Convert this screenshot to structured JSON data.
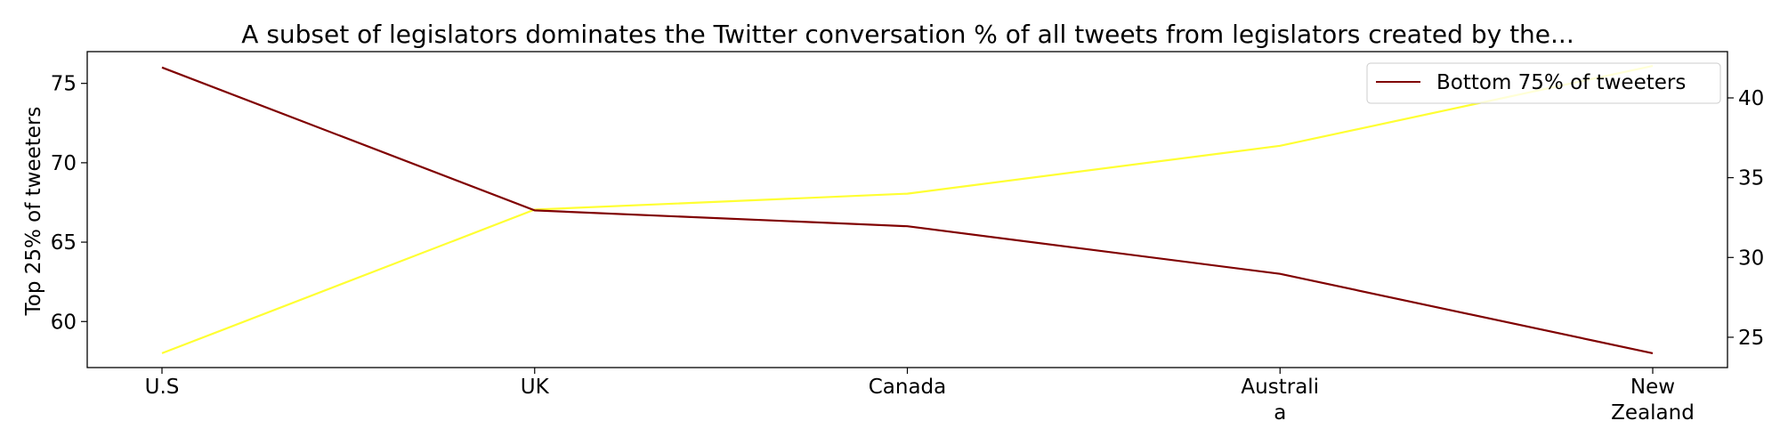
{
  "chart_data": {
    "type": "line",
    "title": "A subset of legislators dominates the Twitter conversation % of all tweets from legislators created by the...",
    "categories": [
      [
        "U.S"
      ],
      [
        "UK"
      ],
      [
        "Canada"
      ],
      [
        "Australi",
        "a"
      ],
      [
        "New",
        "Zealand"
      ]
    ],
    "ylabel_left": "Top 25% of tweeters",
    "ylabel_right": "",
    "ylim_left": [
      57.1,
      77.0
    ],
    "ylim_right": [
      23.1,
      42.9
    ],
    "yticks_left": [
      60,
      65,
      70,
      75
    ],
    "yticks_right": [
      25,
      30,
      35,
      40
    ],
    "series": [
      {
        "name": "Top 25% of tweeters",
        "axis": "left",
        "color": "#800000",
        "values": [
          76,
          67,
          66,
          63,
          58
        ]
      },
      {
        "name": "Bottom 75% of tweeters",
        "axis": "right",
        "color": "#ffff33",
        "values": [
          24,
          33,
          34,
          37,
          42
        ]
      }
    ],
    "legend": {
      "position": "top-right",
      "label": "Bottom 75% of tweeters",
      "color": "#800000"
    },
    "grid": false
  }
}
